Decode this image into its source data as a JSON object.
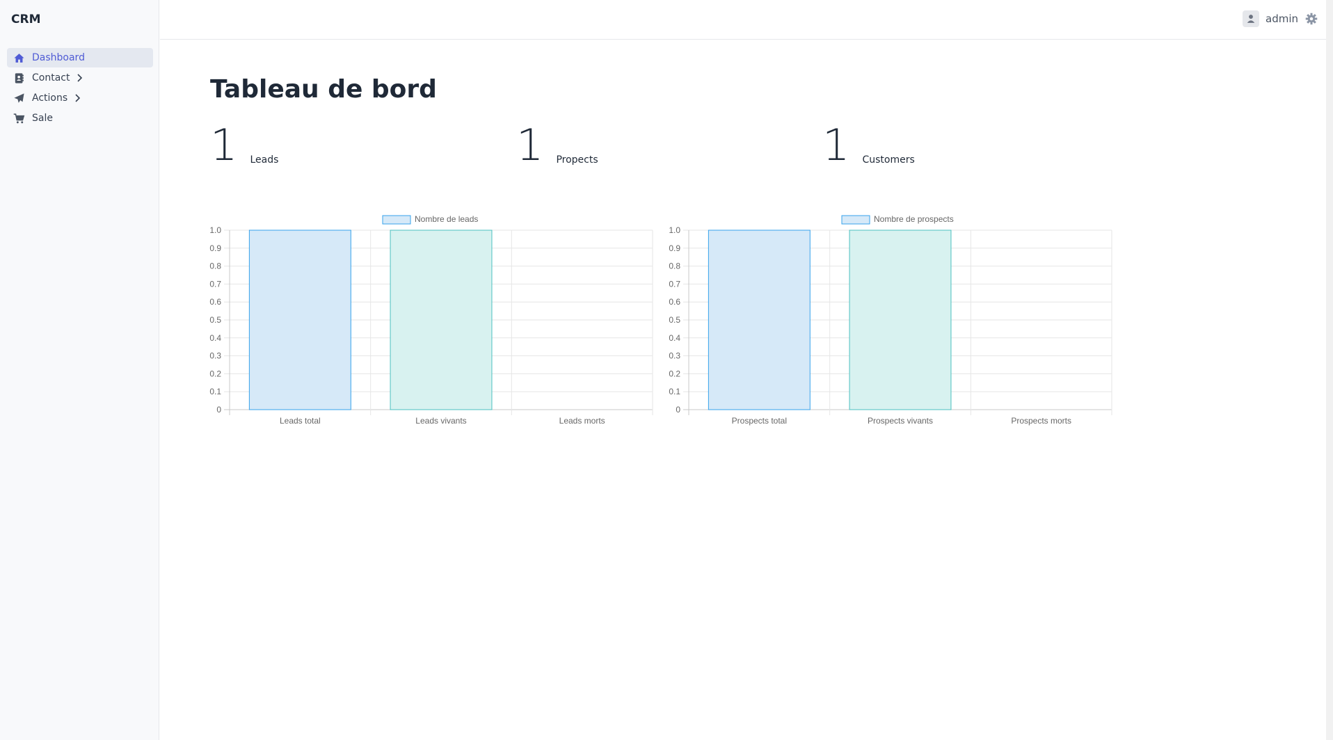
{
  "app": {
    "brand": "CRM"
  },
  "sidebar": {
    "items": [
      {
        "label": "Dashboard",
        "icon": "home-icon",
        "active": true,
        "has_children": false
      },
      {
        "label": "Contact",
        "icon": "contact-card-icon",
        "active": false,
        "has_children": true
      },
      {
        "label": "Actions",
        "icon": "paper-plane-icon",
        "active": false,
        "has_children": true
      },
      {
        "label": "Sale",
        "icon": "shopping-cart-icon",
        "active": false,
        "has_children": false
      }
    ]
  },
  "header": {
    "user_name": "admin",
    "user_icon": "user-icon",
    "settings_icon": "gear-icon"
  },
  "main": {
    "title": "Tableau de bord",
    "stats": [
      {
        "value": "1",
        "label": "Leads"
      },
      {
        "value": "1",
        "label": "Propects"
      },
      {
        "value": "1",
        "label": "Customers"
      }
    ]
  },
  "colors": {
    "accent": "#4f5bd5",
    "bar_blue_fill": "#d6e9f8",
    "bar_blue_stroke": "#36a2eb",
    "bar_teal_fill": "#d8f2f0",
    "bar_teal_stroke": "#4bc0c0"
  },
  "chart_data": [
    {
      "type": "bar",
      "legend": "Nombre de leads",
      "legend_position": "top",
      "categories": [
        "Leads total",
        "Leads vivants",
        "Leads morts"
      ],
      "values": [
        1,
        1,
        0
      ],
      "ylim": [
        0,
        1.0
      ],
      "yticks": [
        "0",
        "0.1",
        "0.2",
        "0.3",
        "0.4",
        "0.5",
        "0.6",
        "0.7",
        "0.8",
        "0.9",
        "1.0"
      ],
      "grid": true
    },
    {
      "type": "bar",
      "legend": "Nombre de prospects",
      "legend_position": "top",
      "categories": [
        "Prospects total",
        "Prospects vivants",
        "Prospects morts"
      ],
      "values": [
        1,
        1,
        0
      ],
      "ylim": [
        0,
        1.0
      ],
      "yticks": [
        "0",
        "0.1",
        "0.2",
        "0.3",
        "0.4",
        "0.5",
        "0.6",
        "0.7",
        "0.8",
        "0.9",
        "1.0"
      ],
      "grid": true
    }
  ]
}
